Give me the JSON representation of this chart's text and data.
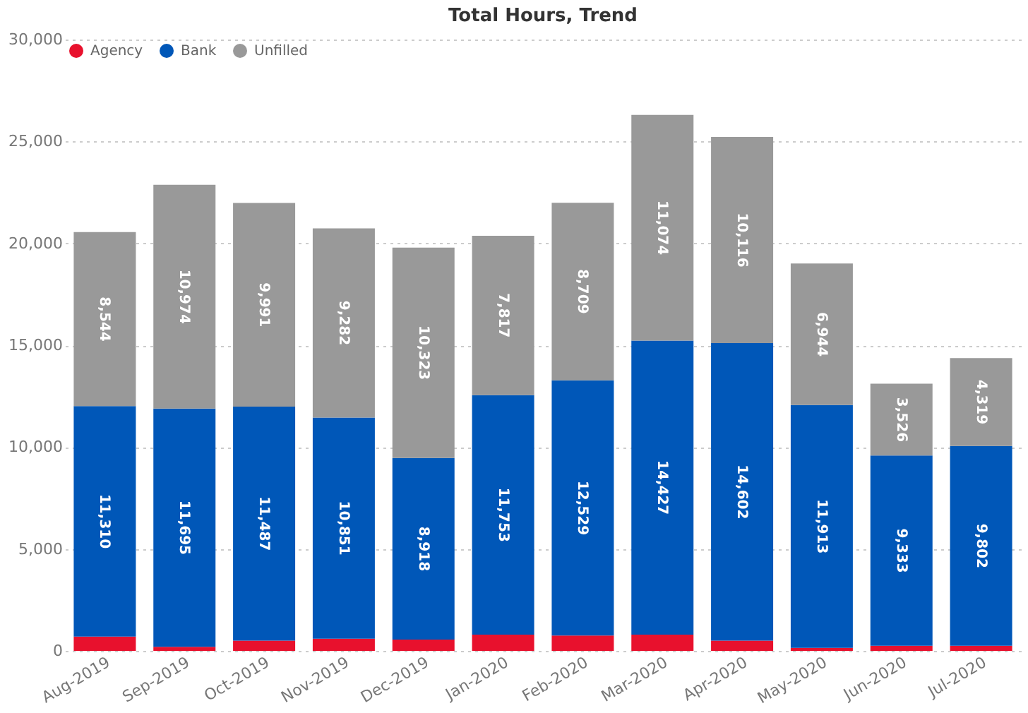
{
  "chart_data": {
    "type": "bar",
    "title": "Total Hours, Trend",
    "stacked": true,
    "legend": "top left",
    "grid": "y",
    "categories": [
      "Aug-2019",
      "Sep-2019",
      "Oct-2019",
      "Nov-2019",
      "Dec-2019",
      "Jan-2020",
      "Feb-2020",
      "Mar-2020",
      "Apr-2020",
      "May-2020",
      "Jun-2020",
      "Jul-2020"
    ],
    "ylim": [
      0,
      30000
    ],
    "yticks": [
      {
        "value": 0,
        "label": "0"
      },
      {
        "value": 5000,
        "label": "5,000"
      },
      {
        "value": 10000,
        "label": "10,000"
      },
      {
        "value": 15000,
        "label": "15,000"
      },
      {
        "value": 20000,
        "label": "20,000"
      },
      {
        "value": 25000,
        "label": "25,000"
      },
      {
        "value": 30000,
        "label": "30,000"
      }
    ],
    "series": [
      {
        "name": "Agency",
        "color": "#e8112d",
        "values": [
          700,
          200,
          500,
          600,
          550,
          800,
          750,
          800,
          500,
          150,
          250,
          250
        ]
      },
      {
        "name": "Bank",
        "color": "#0057b8",
        "values": [
          11310,
          11695,
          11487,
          10851,
          8918,
          11753,
          12529,
          14427,
          14602,
          11913,
          9333,
          9802
        ],
        "value_labels": [
          "11,310",
          "11,695",
          "11,487",
          "10,851",
          "8,918",
          "11,753",
          "12,529",
          "14,427",
          "14,602",
          "11,913",
          "9,333",
          "9,802"
        ]
      },
      {
        "name": "Unfilled",
        "color": "#999999",
        "values": [
          8544,
          10974,
          9991,
          9282,
          10323,
          7817,
          8709,
          11074,
          10116,
          6944,
          3526,
          4319
        ],
        "value_labels": [
          "8,544",
          "10,974",
          "9,991",
          "9,282",
          "10,323",
          "7,817",
          "8,709",
          "11,074",
          "10,116",
          "6,944",
          "3,526",
          "4,319"
        ]
      }
    ]
  }
}
